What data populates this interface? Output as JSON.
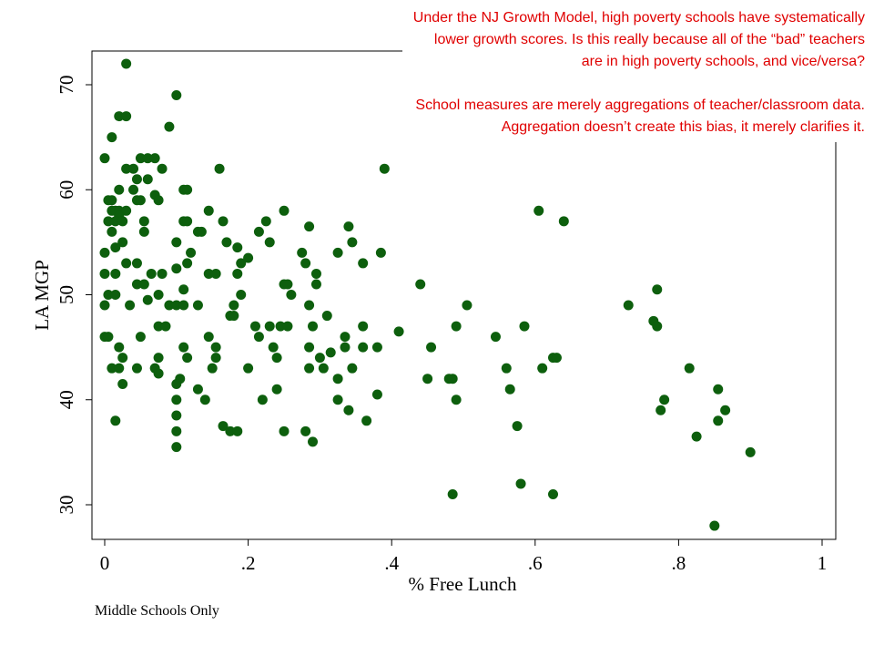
{
  "chart_data": {
    "type": "scatter",
    "title": "",
    "xlabel": "% Free Lunch",
    "ylabel": "LA MGP",
    "xlim": [
      -0.01,
      1.02
    ],
    "ylim": [
      27,
      73
    ],
    "x_ticks": [
      0,
      0.2,
      0.4,
      0.6,
      0.8,
      1
    ],
    "x_tick_labels": [
      "0",
      ".2",
      ".4",
      ".6",
      ".8",
      "1"
    ],
    "y_ticks": [
      30,
      40,
      50,
      60,
      70
    ],
    "y_tick_labels": [
      "30",
      "40",
      "50",
      "60",
      "70"
    ],
    "grid": false,
    "legend": null,
    "marker_color": "#0d5f0d",
    "points": [
      [
        0.03,
        72
      ],
      [
        0.1,
        69
      ],
      [
        0.02,
        67
      ],
      [
        0.03,
        67
      ],
      [
        0.09,
        66
      ],
      [
        0.01,
        65
      ],
      [
        0,
        63
      ],
      [
        0.05,
        63
      ],
      [
        0.06,
        63
      ],
      [
        0.07,
        63
      ],
      [
        0.03,
        62
      ],
      [
        0.04,
        62
      ],
      [
        0.08,
        62
      ],
      [
        0.16,
        62
      ],
      [
        0.39,
        62
      ],
      [
        0.045,
        61
      ],
      [
        0.06,
        61
      ],
      [
        0.02,
        60
      ],
      [
        0.04,
        60
      ],
      [
        0.11,
        60
      ],
      [
        0.115,
        60
      ],
      [
        0.07,
        59.5
      ],
      [
        0.005,
        59
      ],
      [
        0.01,
        59
      ],
      [
        0.045,
        59
      ],
      [
        0.05,
        59
      ],
      [
        0.075,
        59
      ],
      [
        0.01,
        58
      ],
      [
        0.015,
        58
      ],
      [
        0.02,
        58
      ],
      [
        0.03,
        58
      ],
      [
        0.145,
        58
      ],
      [
        0.25,
        58
      ],
      [
        0.605,
        58
      ],
      [
        0.02,
        57.5
      ],
      [
        0.005,
        57
      ],
      [
        0.015,
        57
      ],
      [
        0.025,
        57
      ],
      [
        0.055,
        57
      ],
      [
        0.11,
        57
      ],
      [
        0.115,
        57
      ],
      [
        0.165,
        57
      ],
      [
        0.225,
        57
      ],
      [
        0.64,
        57
      ],
      [
        0.01,
        56
      ],
      [
        0.055,
        56
      ],
      [
        0.13,
        56
      ],
      [
        0.135,
        56
      ],
      [
        0.215,
        56
      ],
      [
        0.285,
        56.5
      ],
      [
        0.34,
        56.5
      ],
      [
        0.025,
        55
      ],
      [
        0.1,
        55
      ],
      [
        0.17,
        55
      ],
      [
        0.23,
        55
      ],
      [
        0.345,
        55
      ],
      [
        0.015,
        54.5
      ],
      [
        0,
        54
      ],
      [
        0.12,
        54
      ],
      [
        0.185,
        54.5
      ],
      [
        0.275,
        54
      ],
      [
        0.325,
        54
      ],
      [
        0.385,
        54
      ],
      [
        0.03,
        53
      ],
      [
        0.045,
        53
      ],
      [
        0.115,
        53
      ],
      [
        0.19,
        53
      ],
      [
        0.2,
        53.5
      ],
      [
        0.28,
        53
      ],
      [
        0.36,
        53
      ],
      [
        0,
        52
      ],
      [
        0.015,
        52
      ],
      [
        0.065,
        52
      ],
      [
        0.08,
        52
      ],
      [
        0.1,
        52.5
      ],
      [
        0.145,
        52
      ],
      [
        0.155,
        52
      ],
      [
        0.185,
        52
      ],
      [
        0.295,
        52
      ],
      [
        0.045,
        51
      ],
      [
        0.055,
        51
      ],
      [
        0.25,
        51
      ],
      [
        0.255,
        51
      ],
      [
        0.295,
        51
      ],
      [
        0.44,
        51
      ],
      [
        0.005,
        50
      ],
      [
        0.015,
        50
      ],
      [
        0.075,
        50
      ],
      [
        0.11,
        50.5
      ],
      [
        0.19,
        50
      ],
      [
        0.26,
        50
      ],
      [
        0.77,
        50.5
      ],
      [
        0.06,
        49.5
      ],
      [
        0,
        49
      ],
      [
        0.035,
        49
      ],
      [
        0.09,
        49
      ],
      [
        0.1,
        49
      ],
      [
        0.11,
        49
      ],
      [
        0.13,
        49
      ],
      [
        0.18,
        49
      ],
      [
        0.285,
        49
      ],
      [
        0.505,
        49
      ],
      [
        0.73,
        49
      ],
      [
        0.175,
        48
      ],
      [
        0.18,
        48
      ],
      [
        0.31,
        48
      ],
      [
        0.765,
        47.5
      ],
      [
        0.075,
        47
      ],
      [
        0.085,
        47
      ],
      [
        0.21,
        47
      ],
      [
        0.23,
        47
      ],
      [
        0.245,
        47
      ],
      [
        0.255,
        47
      ],
      [
        0.29,
        47
      ],
      [
        0.36,
        47
      ],
      [
        0.49,
        47
      ],
      [
        0.585,
        47
      ],
      [
        0.77,
        47
      ],
      [
        0.41,
        46.5
      ],
      [
        0,
        46
      ],
      [
        0.005,
        46
      ],
      [
        0.05,
        46
      ],
      [
        0.145,
        46
      ],
      [
        0.215,
        46
      ],
      [
        0.335,
        46
      ],
      [
        0.545,
        46
      ],
      [
        0.02,
        45
      ],
      [
        0.11,
        45
      ],
      [
        0.155,
        45
      ],
      [
        0.235,
        45
      ],
      [
        0.285,
        45
      ],
      [
        0.335,
        45
      ],
      [
        0.36,
        45
      ],
      [
        0.38,
        45
      ],
      [
        0.455,
        45
      ],
      [
        0.025,
        44
      ],
      [
        0.075,
        44
      ],
      [
        0.115,
        44
      ],
      [
        0.155,
        44
      ],
      [
        0.24,
        44
      ],
      [
        0.3,
        44
      ],
      [
        0.315,
        44.5
      ],
      [
        0.625,
        44
      ],
      [
        0.63,
        44
      ],
      [
        0.01,
        43
      ],
      [
        0.02,
        43
      ],
      [
        0.045,
        43
      ],
      [
        0.07,
        43
      ],
      [
        0.15,
        43
      ],
      [
        0.2,
        43
      ],
      [
        0.285,
        43
      ],
      [
        0.305,
        43
      ],
      [
        0.345,
        43
      ],
      [
        0.56,
        43
      ],
      [
        0.61,
        43
      ],
      [
        0.815,
        43
      ],
      [
        0.075,
        42.5
      ],
      [
        0.105,
        42
      ],
      [
        0.325,
        42
      ],
      [
        0.45,
        42
      ],
      [
        0.48,
        42
      ],
      [
        0.485,
        42
      ],
      [
        0.025,
        41.5
      ],
      [
        0.1,
        41.5
      ],
      [
        0.13,
        41
      ],
      [
        0.24,
        41
      ],
      [
        0.565,
        41
      ],
      [
        0.855,
        41
      ],
      [
        0.38,
        40.5
      ],
      [
        0.1,
        40
      ],
      [
        0.14,
        40
      ],
      [
        0.22,
        40
      ],
      [
        0.325,
        40
      ],
      [
        0.49,
        40
      ],
      [
        0.78,
        40
      ],
      [
        0.34,
        39
      ],
      [
        0.775,
        39
      ],
      [
        0.865,
        39
      ],
      [
        0.1,
        38.5
      ],
      [
        0.015,
        38
      ],
      [
        0.365,
        38
      ],
      [
        0.855,
        38
      ],
      [
        0.165,
        37.5
      ],
      [
        0.575,
        37.5
      ],
      [
        0.1,
        37
      ],
      [
        0.175,
        37
      ],
      [
        0.185,
        37
      ],
      [
        0.25,
        37
      ],
      [
        0.28,
        37
      ],
      [
        0.825,
        36.5
      ],
      [
        0.29,
        36
      ],
      [
        0.1,
        35.5
      ],
      [
        0.9,
        35
      ],
      [
        0.58,
        32
      ],
      [
        0.485,
        31
      ],
      [
        0.625,
        31
      ],
      [
        0.85,
        28
      ]
    ]
  },
  "annotation": {
    "paragraph1": "Under the NJ Growth Model, high poverty schools have systematically lower growth scores. Is this really because all of the “bad” teachers are in high poverty schools, and vice/versa?",
    "paragraph2": "School measures are merely aggregations of teacher/classroom data.  Aggregation doesn’t create this bias, it merely clarifies it."
  },
  "footnote": "Middle Schools Only"
}
